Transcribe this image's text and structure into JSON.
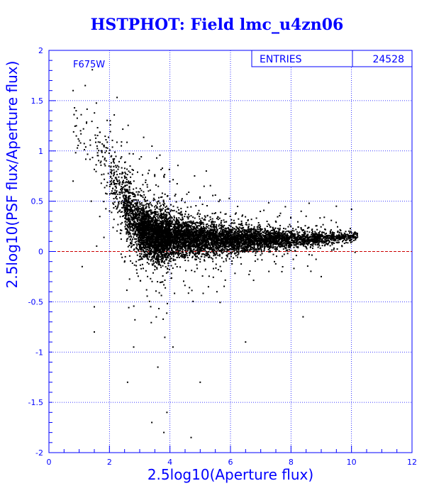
{
  "chart_data": {
    "type": "scatter",
    "title": "HSTPHOT: Field lmc_u4zn06",
    "xlabel": "2.5log10(Aperture flux)",
    "ylabel": "2.5log10(PSF flux/Aperture flux)",
    "filter_label": "F675W",
    "stats": {
      "label": "ENTRIES",
      "value": "24528"
    },
    "xlim": [
      0,
      12
    ],
    "ylim": [
      -2,
      2
    ],
    "xticks": [
      0,
      2,
      4,
      6,
      8,
      10,
      12
    ],
    "yticks": [
      -2,
      -1.5,
      -1,
      -0.5,
      0,
      0.5,
      1,
      1.5,
      2
    ],
    "xtick_labels": [
      "0",
      "2",
      "4",
      "6",
      "8",
      "10",
      "12"
    ],
    "ytick_labels": [
      "-2",
      "-1.5",
      "-1",
      "-0.5",
      "0",
      "0.5",
      "1",
      "1.5",
      "2"
    ],
    "grid": true,
    "reference_line": {
      "y": 0,
      "color": "#cc0000"
    },
    "point_color": "#000000",
    "density_profile": [
      {
        "x": 0.8,
        "mean": 1.25,
        "spread": 0.3,
        "weight": 3
      },
      {
        "x": 1.5,
        "mean": 1.05,
        "spread": 0.35,
        "weight": 6
      },
      {
        "x": 2.0,
        "mean": 0.8,
        "spread": 0.35,
        "weight": 12
      },
      {
        "x": 2.5,
        "mean": 0.5,
        "spread": 0.3,
        "weight": 40
      },
      {
        "x": 3.0,
        "mean": 0.22,
        "spread": 0.25,
        "weight": 120
      },
      {
        "x": 3.5,
        "mean": 0.16,
        "spread": 0.22,
        "weight": 170
      },
      {
        "x": 4.0,
        "mean": 0.14,
        "spread": 0.2,
        "weight": 180
      },
      {
        "x": 5.0,
        "mean": 0.13,
        "spread": 0.15,
        "weight": 160
      },
      {
        "x": 6.0,
        "mean": 0.12,
        "spread": 0.12,
        "weight": 140
      },
      {
        "x": 7.0,
        "mean": 0.12,
        "spread": 0.1,
        "weight": 110
      },
      {
        "x": 8.0,
        "mean": 0.12,
        "spread": 0.08,
        "weight": 80
      },
      {
        "x": 9.0,
        "mean": 0.13,
        "spread": 0.06,
        "weight": 45
      },
      {
        "x": 9.8,
        "mean": 0.14,
        "spread": 0.05,
        "weight": 20
      },
      {
        "x": 10.2,
        "mean": 0.15,
        "spread": 0.04,
        "weight": 3
      }
    ],
    "outliers": [
      {
        "x": 0.8,
        "y": 1.6
      },
      {
        "x": 1.2,
        "y": 1.65
      },
      {
        "x": 0.9,
        "y": 1.4
      },
      {
        "x": 1.0,
        "y": 1.1
      },
      {
        "x": 0.8,
        "y": 0.7
      },
      {
        "x": 1.4,
        "y": 0.5
      },
      {
        "x": 1.1,
        "y": -0.15
      },
      {
        "x": 1.5,
        "y": -0.55
      },
      {
        "x": 1.5,
        "y": -0.8
      },
      {
        "x": 3.9,
        "y": -1.6
      },
      {
        "x": 4.7,
        "y": -1.85
      },
      {
        "x": 3.8,
        "y": -1.8
      },
      {
        "x": 3.4,
        "y": -1.7
      },
      {
        "x": 2.6,
        "y": -1.3
      },
      {
        "x": 5.0,
        "y": -1.3
      },
      {
        "x": 8.4,
        "y": -0.65
      },
      {
        "x": 7.7,
        "y": -0.2
      },
      {
        "x": 9.0,
        "y": -0.25
      },
      {
        "x": 8.6,
        "y": 0.48
      },
      {
        "x": 9.5,
        "y": 0.45
      },
      {
        "x": 10.0,
        "y": 0.42
      },
      {
        "x": 5.2,
        "y": 0.8
      },
      {
        "x": 3.8,
        "y": 0.75
      },
      {
        "x": 6.5,
        "y": -0.9
      },
      {
        "x": 2.8,
        "y": -0.95
      },
      {
        "x": 3.6,
        "y": -1.15
      },
      {
        "x": 4.1,
        "y": -0.95
      }
    ]
  }
}
